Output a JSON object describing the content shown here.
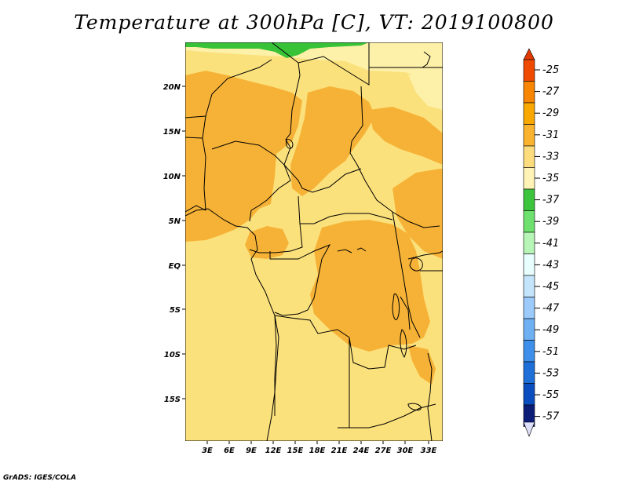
{
  "title": "Temperature at 300hPa [C], VT: 2019100800",
  "credit": "GrADS: IGES/COLA",
  "map": {
    "lat_labels": [
      "20N",
      "15N",
      "10N",
      "5N",
      "EQ",
      "5S",
      "10S",
      "15S"
    ],
    "lon_labels": [
      "3E",
      "6E",
      "9E",
      "12E",
      "15E",
      "18E",
      "21E",
      "24E",
      "27E",
      "30E",
      "33E"
    ]
  },
  "colorbar": {
    "labels": [
      "-25",
      "-27",
      "-29",
      "-31",
      "-33",
      "-35",
      "-37",
      "-39",
      "-41",
      "-43",
      "-45",
      "-47",
      "-49",
      "-51",
      "-53",
      "-55",
      "-57"
    ],
    "colors": [
      "#f04a00",
      "#f98600",
      "#f9a800",
      "#fab32e",
      "#fcdc7d",
      "#fff4b5",
      "#3cc43c",
      "#6ee06e",
      "#b6f5b6",
      "#e8fdfd",
      "#c4e4fb",
      "#9ccafa",
      "#6fb0f3",
      "#3d8fea",
      "#1e6fd8",
      "#0a4dbf",
      "#0c1d78"
    ],
    "top_color": "#e03a00",
    "bottom_color": "#dde0f8"
  },
  "legend_colors": {
    "ocean": "#fbe17c",
    "warm": "#f6b236",
    "pale": "#fdf0a8",
    "green": "#38c238"
  }
}
